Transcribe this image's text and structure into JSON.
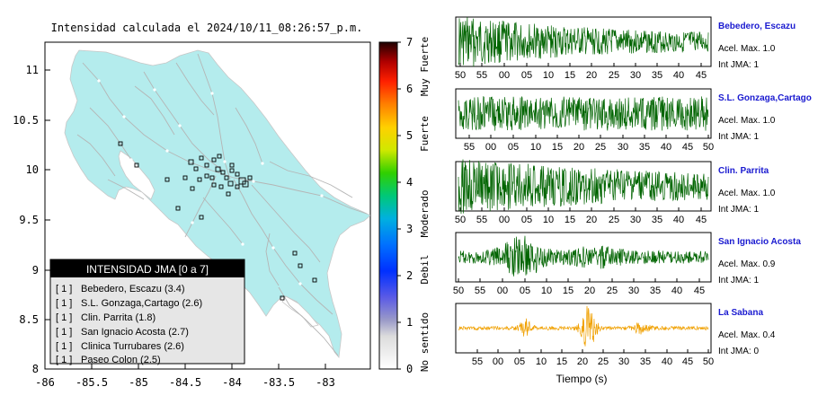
{
  "map": {
    "title": "Intensidad calculada el 2024/10/11_08:26:57_p.m.",
    "x_ticks": [
      "-86",
      "-85.5",
      "-85",
      "-84.5",
      "-84",
      "-83.5",
      "-83"
    ],
    "y_ticks": [
      "8",
      "8.5",
      "9",
      "9.5",
      "10",
      "10.5",
      "11"
    ],
    "xlim": [
      -86,
      -82.5
    ],
    "ylim": [
      8,
      11.25
    ],
    "land_color": "#b4eced",
    "road_color": "#b5b5b5",
    "colorbar": {
      "ticks": [
        "0",
        "1",
        "2",
        "3",
        "4",
        "5",
        "6",
        "7"
      ],
      "categories": [
        "No sentido",
        "Debil",
        "Moderado",
        "Fuerte",
        "Muy Fuerte"
      ]
    },
    "legend": {
      "title": "INTENSIDAD JMA [0 a 7]",
      "items": [
        {
          "level": "[ 1 ]",
          "name": "Bebedero, Escazu (3.4)"
        },
        {
          "level": "[ 1 ]",
          "name": "S.L. Gonzaga,Cartago (2.6)"
        },
        {
          "level": "[ 1 ]",
          "name": "Clin. Parrita (1.8)"
        },
        {
          "level": "[ 1 ]",
          "name": "San Ignacio Acosta (2.7)"
        },
        {
          "level": "[ 1 ]",
          "name": "Clinica Turrubares (2.6)"
        },
        {
          "level": "[ 1 ]",
          "name": "Paseo Colon (2.5)"
        }
      ]
    }
  },
  "waveforms": {
    "xlabel": "Tiempo (s)",
    "accel_prefix": "Acel. Max.",
    "jma_prefix": "Int JMA:",
    "name_color": "#1a1ad0",
    "panels": [
      {
        "name": "Bebedero, Escazu",
        "accel": "1.0",
        "jma": "1",
        "color": "#006400",
        "ticks": [
          "50",
          "55",
          "00",
          "05",
          "10",
          "15",
          "20",
          "25",
          "30",
          "35",
          "40",
          "45"
        ]
      },
      {
        "name": "S.L. Gonzaga,Cartago",
        "accel": "1.0",
        "jma": "1",
        "color": "#006400",
        "ticks": [
          "55",
          "00",
          "05",
          "10",
          "15",
          "20",
          "25",
          "30",
          "35",
          "40",
          "45",
          "50"
        ]
      },
      {
        "name": "Clin. Parrita",
        "accel": "1.0",
        "jma": "1",
        "color": "#006400",
        "ticks": [
          "50",
          "55",
          "00",
          "05",
          "10",
          "15",
          "20",
          "25",
          "30",
          "35",
          "40",
          "45"
        ]
      },
      {
        "name": "San Ignacio Acosta",
        "accel": "0.9",
        "jma": "1",
        "color": "#006400",
        "ticks": [
          "50",
          "55",
          "00",
          "05",
          "10",
          "15",
          "20",
          "25",
          "30",
          "35",
          "40",
          "45"
        ]
      },
      {
        "name": "La Sabana",
        "accel": "0.4",
        "jma": "0",
        "color": "#f0a000",
        "ticks": [
          "55",
          "00",
          "05",
          "10",
          "15",
          "20",
          "25",
          "30",
          "35",
          "40",
          "45",
          "50"
        ]
      }
    ]
  },
  "chart_data": [
    {
      "type": "scatter",
      "title": "Intensidad calculada el 2024/10/11_08:26:57_p.m.",
      "xlim": [
        -86,
        -82.5
      ],
      "ylim": [
        8,
        11.25
      ],
      "x_ticks": [
        -86,
        -85.5,
        -85,
        -84.5,
        -84,
        -83.5,
        -83
      ],
      "y_ticks": [
        8,
        8.5,
        9,
        9.5,
        10,
        10.5,
        11
      ],
      "legend_placement": "bottom-left"
    },
    {
      "type": "line",
      "xlabel": "Tiempo (s)",
      "series": [
        {
          "name": "Bebedero, Escazu",
          "peak": 1.0
        },
        {
          "name": "S.L. Gonzaga,Cartago",
          "peak": 1.0
        },
        {
          "name": "Clin. Parrita",
          "peak": 1.0
        },
        {
          "name": "San Ignacio Acosta",
          "peak": 0.9
        },
        {
          "name": "La Sabana",
          "peak": 0.4
        }
      ]
    }
  ]
}
